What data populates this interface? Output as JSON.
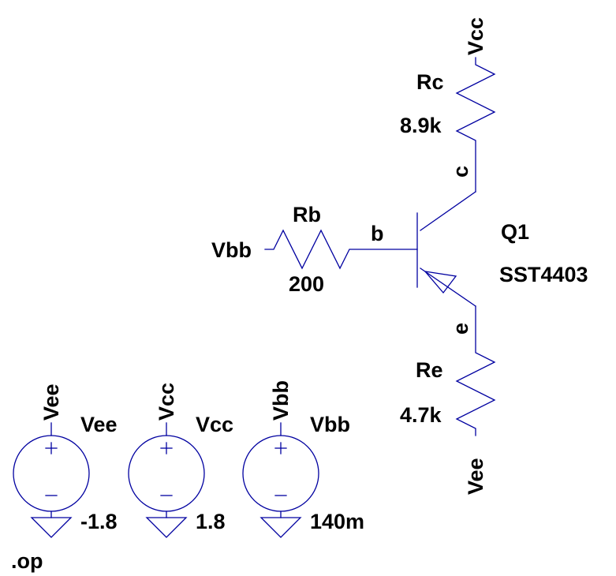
{
  "schematic": {
    "wire_color": "#0000a0",
    "text_color": "#000000",
    "background": "#ffffff",
    "transistor": {
      "name": "Q1",
      "model": "SST4403",
      "type": "pnp"
    },
    "resistors": {
      "rc": {
        "name": "Rc",
        "value": "8.9k"
      },
      "rb": {
        "name": "Rb",
        "value": "200"
      },
      "re": {
        "name": "Re",
        "value": "4.7k"
      }
    },
    "nets": {
      "vcc": "Vcc",
      "vee": "Vee",
      "vbb": "Vbb",
      "b": "b",
      "c": "c",
      "e": "e"
    },
    "sources": {
      "vee": {
        "net": "Vee",
        "name": "Vee",
        "value": "-1.8"
      },
      "vcc": {
        "net": "Vcc",
        "name": "Vcc",
        "value": "1.8"
      },
      "vbb": {
        "net": "Vbb",
        "name": "Vbb",
        "value": "140m"
      }
    },
    "directive": ".op"
  }
}
